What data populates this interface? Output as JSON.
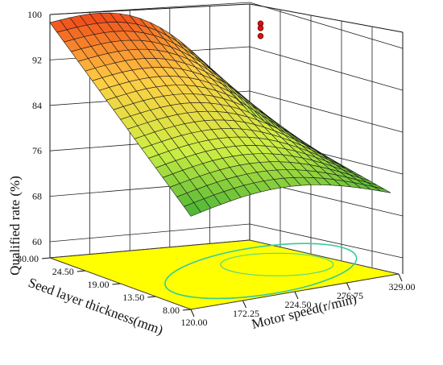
{
  "chart_data": {
    "type": "surface3d",
    "zlabel": "Qualified rate (%)",
    "ylabel": "Seed layer thickness(mm)",
    "xlabel": "Motor speed(r/min)",
    "z_ticks": [
      "60",
      "68",
      "76",
      "84",
      "92",
      "100"
    ],
    "y_ticks": [
      "30.00",
      "24.50",
      "19.00",
      "13.50",
      "8.00"
    ],
    "x_ticks": [
      "120.00",
      "172.25",
      "224.50",
      "276.75",
      "329.00"
    ],
    "x_range": [
      120,
      329
    ],
    "y_range": [
      8,
      30
    ],
    "z_range": [
      60,
      100
    ],
    "surface_corners": [
      {
        "motor_speed": 120,
        "seed_layer_thickness": 30,
        "qualified_rate": 98
      },
      {
        "motor_speed": 329,
        "seed_layer_thickness": 30,
        "qualified_rate": 79
      },
      {
        "motor_speed": 120,
        "seed_layer_thickness": 8,
        "qualified_rate": 73
      },
      {
        "motor_speed": 329,
        "seed_layer_thickness": 8,
        "qualified_rate": 74
      }
    ],
    "design_points": [
      {
        "motor_speed": 224.5,
        "seed_layer_thickness": 19,
        "qualified_rate": 99.4
      },
      {
        "motor_speed": 224.5,
        "seed_layer_thickness": 19,
        "qualified_rate": 98.6
      },
      {
        "motor_speed": 224.5,
        "seed_layer_thickness": 19,
        "qualified_rate": 97.2
      }
    ],
    "floor_color": "#ffff00",
    "contour_color": "#33cc99",
    "colormap": [
      "#33aa33",
      "#ccee44",
      "#ffcc44",
      "#ee3311"
    ],
    "grid": true
  }
}
